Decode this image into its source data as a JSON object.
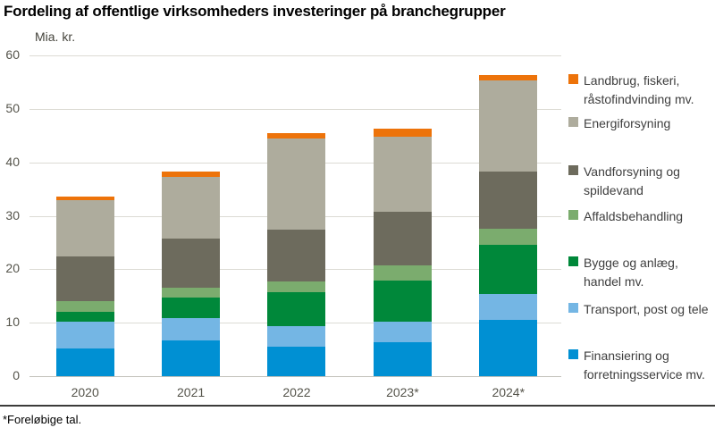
{
  "page": {
    "title": "Fordeling af offentlige virksomheders investeringer på branchegrupper",
    "footnote": "*Foreløbige tal."
  },
  "chart_data": {
    "type": "bar",
    "stacked": true,
    "title": "Fordeling af offentlige virksomheders investeringer på branchegrupper",
    "unit_label": "Mia. kr.",
    "xlabel": "",
    "ylabel": "Mia. kr.",
    "ylim": [
      0,
      60
    ],
    "yticks": [
      0,
      10,
      20,
      30,
      40,
      50,
      60
    ],
    "grid": true,
    "categories": [
      "2020",
      "2021",
      "2022",
      "2023*",
      "2024*"
    ],
    "series": [
      {
        "name": "Finansiering og forretningsservice mv.",
        "color": "#0090d3",
        "values": [
          5.2,
          6.7,
          5.5,
          6.3,
          10.6
        ]
      },
      {
        "name": "Transport, post og tele",
        "color": "#74b6e4",
        "values": [
          5.0,
          4.2,
          3.9,
          3.9,
          4.8
        ]
      },
      {
        "name": "Bygge og anlæg, handel mv.",
        "color": "#00883a",
        "values": [
          1.9,
          3.8,
          6.3,
          7.7,
          9.2
        ]
      },
      {
        "name": "Affaldsbehandling",
        "color": "#7bac6e",
        "values": [
          1.9,
          1.8,
          2.1,
          2.8,
          2.9
        ]
      },
      {
        "name": "Vandforsyning og spildevand",
        "color": "#6d6b5d",
        "values": [
          8.4,
          9.3,
          9.6,
          10.0,
          10.8
        ]
      },
      {
        "name": "Energiforsyning",
        "color": "#aeac9d",
        "values": [
          10.5,
          11.4,
          17.0,
          14.1,
          17.0
        ]
      },
      {
        "name": "Landbrug, fiskeri, råstofindvinding mv.",
        "color": "#ed730a",
        "values": [
          0.7,
          1.0,
          1.1,
          1.5,
          1.0
        ]
      }
    ],
    "totals": [
      33.6,
      38.2,
      45.5,
      46.3,
      56.3
    ],
    "legend": {
      "position": "right",
      "entries": [
        {
          "label": "Landbrug, fiskeri,\nråstofindvinding mv.",
          "color": "#ed730a"
        },
        {
          "label": "Energiforsyning",
          "color": "#aeac9d"
        },
        {
          "label": "Vandforsyning og\nspildevand",
          "color": "#6d6b5d"
        },
        {
          "label": "Affaldsbehandling",
          "color": "#7bac6e"
        },
        {
          "label": "Bygge og anlæg,\nhandel mv.",
          "color": "#00883a"
        },
        {
          "label": "Transport, post og tele",
          "color": "#74b6e4"
        },
        {
          "label": "Finansiering og\nforretningsservice mv.",
          "color": "#0090d3"
        }
      ]
    }
  }
}
